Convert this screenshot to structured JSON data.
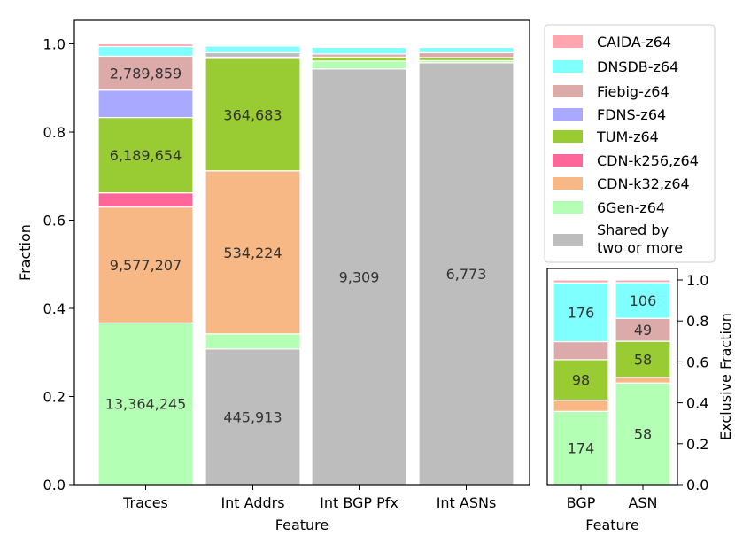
{
  "colors": {
    "caida": "#ffa5b0",
    "dnsdb": "#80ffff",
    "fiebig": "#ddaaaa",
    "fdns": "#a9a9ff",
    "tum": "#99cc33",
    "cdnk256": "#ff6699",
    "cdnk32": "#f8b886",
    "sixgen": "#b3ffb3",
    "shared": "#bdbdbd"
  },
  "legend": [
    {
      "key": "caida",
      "label": "CAIDA-z64"
    },
    {
      "key": "dnsdb",
      "label": "DNSDB-z64"
    },
    {
      "key": "fiebig",
      "label": "Fiebig-z64"
    },
    {
      "key": "fdns",
      "label": "FDNS-z64"
    },
    {
      "key": "tum",
      "label": "TUM-z64"
    },
    {
      "key": "cdnk256",
      "label": "CDN-k256,z64"
    },
    {
      "key": "cdnk32",
      "label": "CDN-k32,z64"
    },
    {
      "key": "sixgen",
      "label": "6Gen-z64"
    },
    {
      "key": "shared",
      "label": "Shared by",
      "label2": "two or more"
    }
  ],
  "chart_data": [
    {
      "type": "bar",
      "stacked": true,
      "xlabel": "Feature",
      "ylabel": "Fraction",
      "ylim": [
        0,
        1.0
      ],
      "yticks": [
        "0.0",
        "0.2",
        "0.4",
        "0.6",
        "0.8",
        "1.0"
      ],
      "categories": [
        "Traces",
        "Int Addrs",
        "Int BGP Pfx",
        "Int ASNs"
      ],
      "bars": [
        {
          "segments": [
            {
              "key": "sixgen",
              "value": 0.367,
              "label": "13,364,245"
            },
            {
              "key": "cdnk32",
              "value": 0.263,
              "label": "9,577,207"
            },
            {
              "key": "cdnk256",
              "value": 0.032,
              "label": ""
            },
            {
              "key": "tum",
              "value": 0.171,
              "label": "6,189,654"
            },
            {
              "key": "fdns",
              "value": 0.062,
              "label": ""
            },
            {
              "key": "fiebig",
              "value": 0.077,
              "label": "2,789,859"
            },
            {
              "key": "dnsdb",
              "value": 0.022,
              "label": ""
            },
            {
              "key": "caida",
              "value": 0.006,
              "label": ""
            }
          ]
        },
        {
          "segments": [
            {
              "key": "shared",
              "value": 0.308,
              "label": "445,913"
            },
            {
              "key": "sixgen",
              "value": 0.034,
              "label": ""
            },
            {
              "key": "cdnk32",
              "value": 0.37,
              "label": "534,224"
            },
            {
              "key": "tum",
              "value": 0.255,
              "label": "364,683"
            },
            {
              "key": "fiebig",
              "value": 0.003,
              "label": ""
            },
            {
              "key": "shared",
              "value": 0.01,
              "label": ""
            },
            {
              "key": "dnsdb",
              "value": 0.015,
              "label": ""
            }
          ]
        },
        {
          "segments": [
            {
              "key": "shared",
              "value": 0.943,
              "label": "9,309"
            },
            {
              "key": "sixgen",
              "value": 0.018,
              "label": ""
            },
            {
              "key": "tum",
              "value": 0.009,
              "label": ""
            },
            {
              "key": "fiebig",
              "value": 0.007,
              "label": ""
            },
            {
              "key": "dnsdb",
              "value": 0.015,
              "label": ""
            }
          ]
        },
        {
          "segments": [
            {
              "key": "shared",
              "value": 0.957,
              "label": "6,773"
            },
            {
              "key": "sixgen",
              "value": 0.005,
              "label": ""
            },
            {
              "key": "tum",
              "value": 0.007,
              "label": ""
            },
            {
              "key": "fiebig",
              "value": 0.011,
              "label": ""
            },
            {
              "key": "dnsdb",
              "value": 0.012,
              "label": ""
            }
          ]
        }
      ]
    },
    {
      "type": "bar",
      "stacked": true,
      "xlabel": "Feature",
      "ylabel": "Exclusive Fraction",
      "ylim": [
        0,
        1.0
      ],
      "yticks": [
        "0.0",
        "0.2",
        "0.4",
        "0.6",
        "0.8",
        "1.0"
      ],
      "categories": [
        "BGP",
        "ASN"
      ],
      "bars": [
        {
          "segments": [
            {
              "key": "sixgen",
              "value": 0.358,
              "label": "174"
            },
            {
              "key": "cdnk32",
              "value": 0.055,
              "label": ""
            },
            {
              "key": "tum",
              "value": 0.198,
              "label": "98"
            },
            {
              "key": "fiebig",
              "value": 0.088,
              "label": ""
            },
            {
              "key": "dnsdb",
              "value": 0.287,
              "label": "176"
            },
            {
              "key": "caida",
              "value": 0.014,
              "label": ""
            }
          ]
        },
        {
          "segments": [
            {
              "key": "sixgen",
              "value": 0.497,
              "label": "58"
            },
            {
              "key": "cdnk32",
              "value": 0.027,
              "label": ""
            },
            {
              "key": "tum",
              "value": 0.177,
              "label": "58"
            },
            {
              "key": "fiebig",
              "value": 0.112,
              "label": "49"
            },
            {
              "key": "dnsdb",
              "value": 0.174,
              "label": "106"
            },
            {
              "key": "caida",
              "value": 0.013,
              "label": ""
            }
          ]
        }
      ]
    }
  ]
}
